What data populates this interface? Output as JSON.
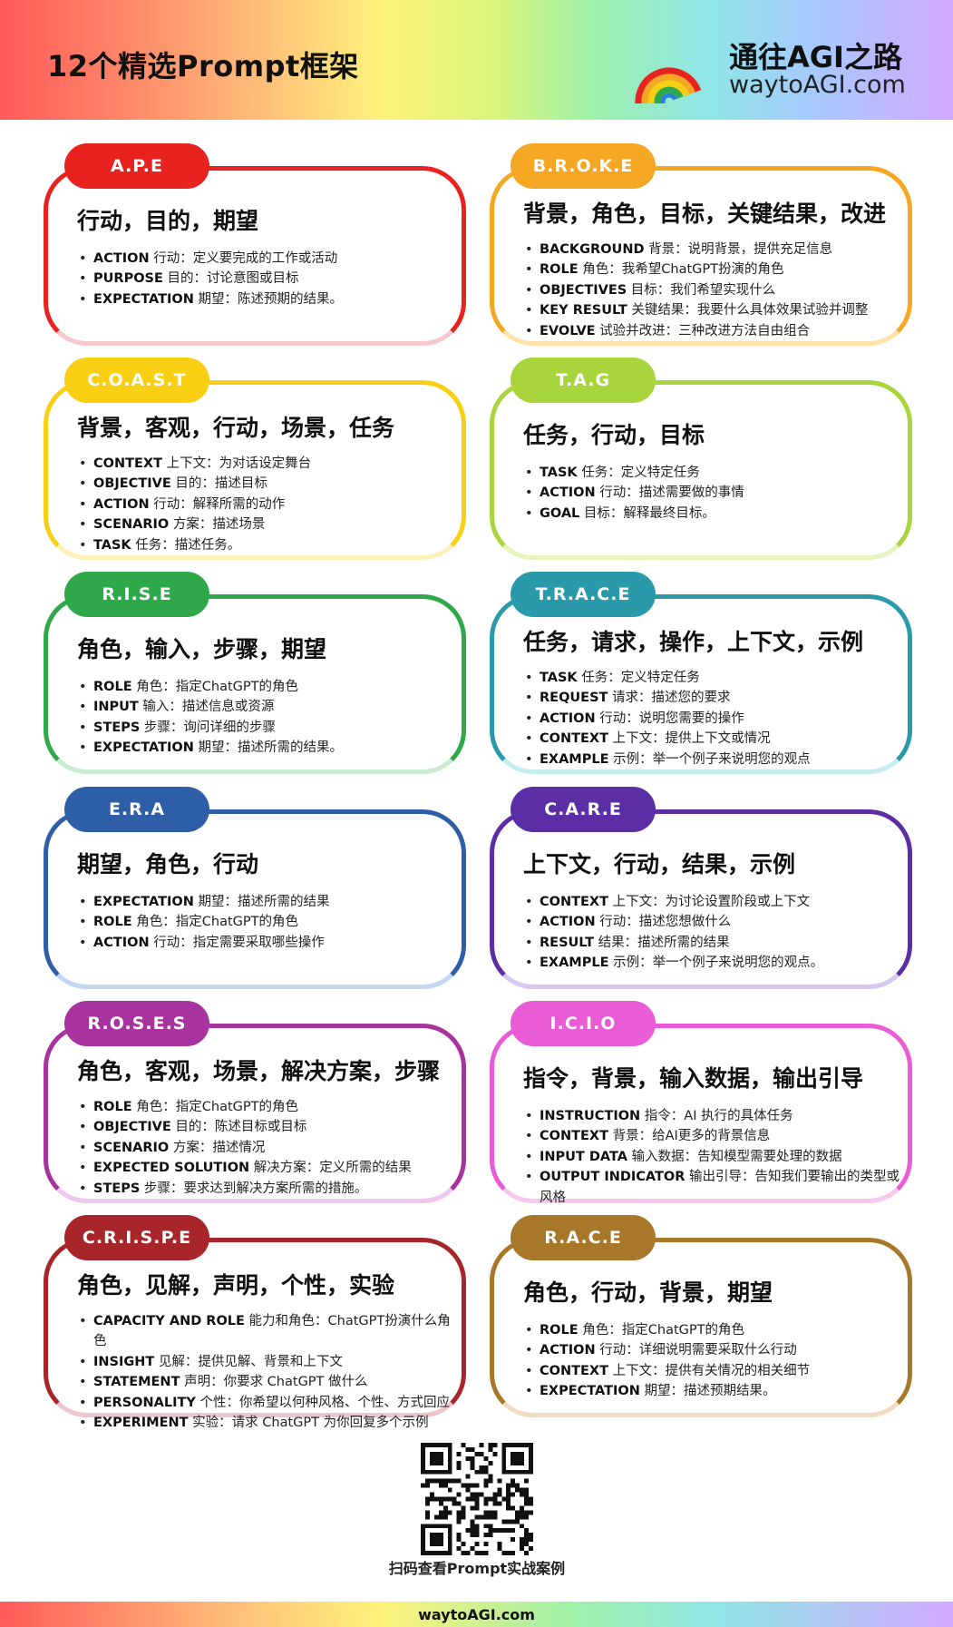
{
  "header": {
    "title": "12个精选Prompt框架",
    "logo_icon": "rainbow-icon",
    "brand_name": "通往AGI之路",
    "brand_url": "waytoAGI.com"
  },
  "frameworks": [
    {
      "id": "ape",
      "tab": "A.P.E",
      "color": "#e8231f",
      "fade": "#f7c9cc",
      "heading": "行动，目的，期望",
      "items": [
        {
          "key": "ACTION",
          "text": " 行动：定义要完成的工作或活动"
        },
        {
          "key": "PURPOSE",
          "text": " 目的：讨论意图或目标"
        },
        {
          "key": "EXPECTATION",
          "text": " 期望：陈述预期的结果。"
        }
      ]
    },
    {
      "id": "broke",
      "tab": "B.R.O.K.E",
      "color": "#f5a623",
      "fade": "#fde3a8",
      "heading": "背景，角色，目标，关键结果，改进",
      "items": [
        {
          "key": "BACKGROUND",
          "text": " 背景：说明背景，提供充足信息"
        },
        {
          "key": "ROLE",
          "text": " 角色：我希望ChatGPT扮演的角色"
        },
        {
          "key": "OBJECTIVES",
          "text": " 目标：我们希望实现什么"
        },
        {
          "key": "KEY RESULT",
          "text": " 关键结果：我要什么具体效果试验并调整"
        },
        {
          "key": "EVOLVE",
          "text": " 试验并改进：三种改进方法自由组合"
        }
      ]
    },
    {
      "id": "coast",
      "tab": "C.O.A.S.T",
      "color": "#f9cf14",
      "fade": "#fdf0b8",
      "heading": "背景，客观，行动，场景，任务",
      "items": [
        {
          "key": "CONTEXT",
          "text": " 上下文：为对话设定舞台"
        },
        {
          "key": "OBJECTIVE",
          "text": " 目的：描述目标"
        },
        {
          "key": "ACTION",
          "text": " 行动：解释所需的动作"
        },
        {
          "key": "SCENARIO",
          "text": " 方案：描述场景"
        },
        {
          "key": "TASK",
          "text": " 任务：描述任务。"
        }
      ]
    },
    {
      "id": "tag",
      "tab": "T.A.G",
      "color": "#a8d43c",
      "fade": "#e6f5bd",
      "heading": "任务，行动，目标",
      "items": [
        {
          "key": "TASK",
          "text": " 任务：定义特定任务"
        },
        {
          "key": "ACTION",
          "text": " 行动：描述需要做的事情"
        },
        {
          "key": "GOAL",
          "text": " 目标：解释最终目标。"
        }
      ]
    },
    {
      "id": "rise",
      "tab": "R.I.S.E",
      "color": "#2fa84a",
      "fade": "#c7ecd0",
      "heading": "角色，输入，步骤，期望",
      "items": [
        {
          "key": "ROLE",
          "text": " 角色：指定ChatGPT的角色"
        },
        {
          "key": "INPUT",
          "text": " 输入：描述信息或资源"
        },
        {
          "key": "STEPS",
          "text": " 步骤：询问详细的步骤"
        },
        {
          "key": "EXPECTATION",
          "text": " 期望：描述所需的结果。"
        }
      ]
    },
    {
      "id": "trace",
      "tab": "T.R.A.C.E",
      "color": "#2a9aaa",
      "fade": "#c5ecef",
      "heading": "任务，请求，操作，上下文，示例",
      "items": [
        {
          "key": "TASK",
          "text": " 任务：定义特定任务"
        },
        {
          "key": "REQUEST",
          "text": " 请求：描述您的要求"
        },
        {
          "key": "ACTION",
          "text": " 行动：说明您需要的操作"
        },
        {
          "key": "CONTEXT",
          "text": " 上下文：提供上下文或情况"
        },
        {
          "key": "EXAMPLE",
          "text": " 示例：举一个例子来说明您的观点"
        }
      ]
    },
    {
      "id": "era",
      "tab": "E.R.A",
      "color": "#2e5ea8",
      "fade": "#c3d6f2",
      "heading": "期望，角色，行动",
      "items": [
        {
          "key": "EXPECTATION",
          "text": " 期望：描述所需的结果"
        },
        {
          "key": "ROLE",
          "text": " 角色：指定ChatGPT的角色"
        },
        {
          "key": "ACTION",
          "text": " 行动：指定需要采取哪些操作"
        }
      ]
    },
    {
      "id": "care",
      "tab": "C.A.R.E",
      "color": "#5b2ea6",
      "fade": "#d6c8f0",
      "heading": "上下文，行动，结果，示例",
      "items": [
        {
          "key": "CONTEXT",
          "text": " 上下文：为讨论设置阶段或上下文"
        },
        {
          "key": "ACTION",
          "text": " 行动：描述您想做什么"
        },
        {
          "key": "RESULT",
          "text": " 结果：描述所需的结果"
        },
        {
          "key": "EXAMPLE",
          "text": " 示例：举一个例子来说明您的观点。"
        }
      ]
    },
    {
      "id": "roses",
      "tab": "R.O.S.E.S",
      "color": "#a8329e",
      "fade": "#efc6ef",
      "heading": "角色，客观，场景，解决方案，步骤",
      "items": [
        {
          "key": "ROLE",
          "text": " 角色：指定ChatGPT的角色"
        },
        {
          "key": "OBJECTIVE",
          "text": " 目的：陈述目标或目标"
        },
        {
          "key": "SCENARIO",
          "text": " 方案：描述情况"
        },
        {
          "key": "EXPECTED SOLUTION",
          "text": " 解决方案：定义所需的结果"
        },
        {
          "key": "STEPS",
          "text": " 步骤：要求达到解决方案所需的措施。"
        }
      ]
    },
    {
      "id": "icio",
      "tab": "I.C.I.O",
      "color": "#ea5bd6",
      "fade": "#f8c8ef",
      "heading": "指令，背景，输入数据，输出引导",
      "items": [
        {
          "key": "INSTRUCTION",
          "text": " 指令：AI 执行的具体任务"
        },
        {
          "key": "CONTEXT",
          "text": " 背景：给AI更多的背景信息"
        },
        {
          "key": "INPUT DATA",
          "text": "  输入数据：告知模型需要处理的数据"
        },
        {
          "key": "OUTPUT INDICATOR",
          "text": " 输出引导：告知我们要输出的类型或风格"
        }
      ]
    },
    {
      "id": "crispe",
      "tab": "C.R.I.S.P.E",
      "color": "#a8262a",
      "fade": "#ecc6c8",
      "heading": "角色，见解，声明，个性，实验",
      "items": [
        {
          "key": "CAPACITY AND ROLE",
          "text": " 能力和角色：ChatGPT扮演什么角色"
        },
        {
          "key": "INSIGHT",
          "text": " 见解：提供见解、背景和上下文"
        },
        {
          "key": "STATEMENT",
          "text": " 声明：你要求 ChatGPT 做什么"
        },
        {
          "key": "PERSONALITY",
          "text": " 个性：你希望以何种风格、个性、方式回应"
        },
        {
          "key": "EXPERIMENT",
          "text": " 实验：请求 ChatGPT 为你回复多个示例"
        }
      ]
    },
    {
      "id": "race",
      "tab": "R.A.C.E",
      "color": "#a8782a",
      "fade": "#f0dcc0",
      "heading": "角色，行动，背景，期望",
      "items": [
        {
          "key": "ROLE",
          "text": " 角色：指定ChatGPT的角色"
        },
        {
          "key": "ACTION",
          "text": " 行动：详细说明需要采取什么行动"
        },
        {
          "key": "CONTEXT",
          "text": " 上下文：提供有关情况的相关细节"
        },
        {
          "key": "EXPECTATION",
          "text": " 期望：描述预期结果。"
        }
      ]
    }
  ],
  "qr": {
    "icon": "qr-code-icon",
    "caption": "扫码查看Prompt实战案例"
  },
  "footer": {
    "url": "waytoAGI.com"
  }
}
